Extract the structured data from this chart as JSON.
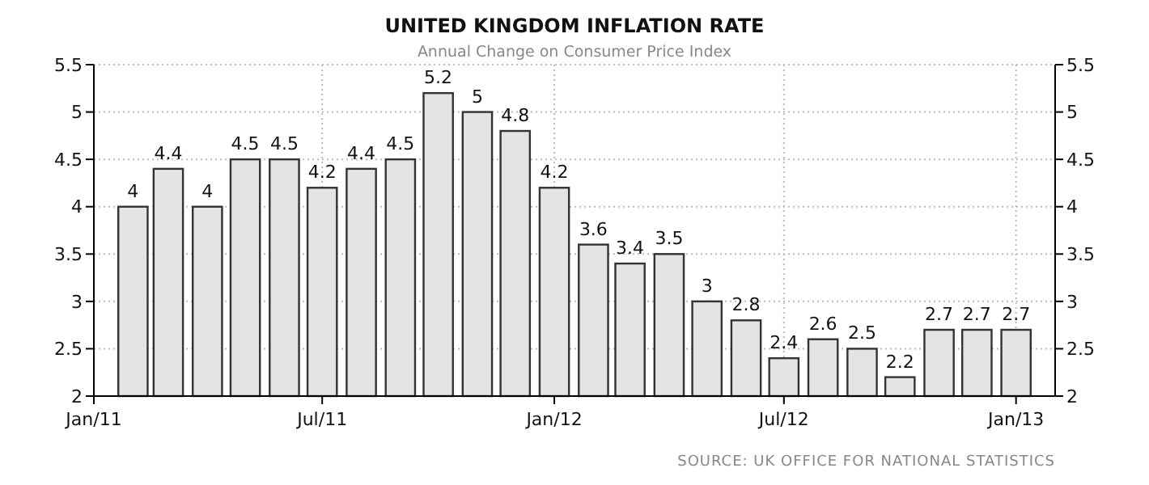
{
  "chart_data": {
    "type": "bar",
    "title": "UNITED KINGDOM INFLATION RATE",
    "subtitle": "Annual Change on Consumer Price Index",
    "x": [
      "2011-02",
      "2011-03",
      "2011-04",
      "2011-05",
      "2011-06",
      "2011-07",
      "2011-08",
      "2011-09",
      "2011-10",
      "2011-11",
      "2011-12",
      "2012-01",
      "2012-02",
      "2012-03",
      "2012-04",
      "2012-05",
      "2012-06",
      "2012-07",
      "2012-08",
      "2012-09",
      "2012-10",
      "2012-11",
      "2012-12",
      "2013-01"
    ],
    "values": [
      4,
      4.4,
      4,
      4.5,
      4.5,
      4.2,
      4.4,
      4.5,
      5.2,
      5,
      4.8,
      4.2,
      3.6,
      3.4,
      3.5,
      3,
      2.8,
      2.4,
      2.6,
      2.5,
      2.2,
      2.7,
      2.7,
      2.7
    ],
    "color": "#e4e4e4",
    "data_labels": true,
    "grid": true,
    "xlim": [
      "2011-01",
      "2013-02"
    ],
    "xticks": [
      {
        "value": "2011-01",
        "label": "Jan/11"
      },
      {
        "value": "2011-07",
        "label": "Jul/11"
      },
      {
        "value": "2012-01",
        "label": "Jan/12"
      },
      {
        "value": "2012-07",
        "label": "Jul/12"
      },
      {
        "value": "2013-01",
        "label": "Jan/13"
      }
    ],
    "ylim": [
      2,
      5.5
    ],
    "yticks": [
      2,
      2.5,
      3,
      3.5,
      4,
      4.5,
      5,
      5.5
    ],
    "y2lim": [
      2,
      5.5
    ],
    "y2ticks": [
      2,
      2.5,
      3,
      3.5,
      4,
      4.5,
      5,
      5.5
    ],
    "annotations": [
      "SOURCE: UK OFFICE FOR NATIONAL STATISTICS"
    ]
  }
}
